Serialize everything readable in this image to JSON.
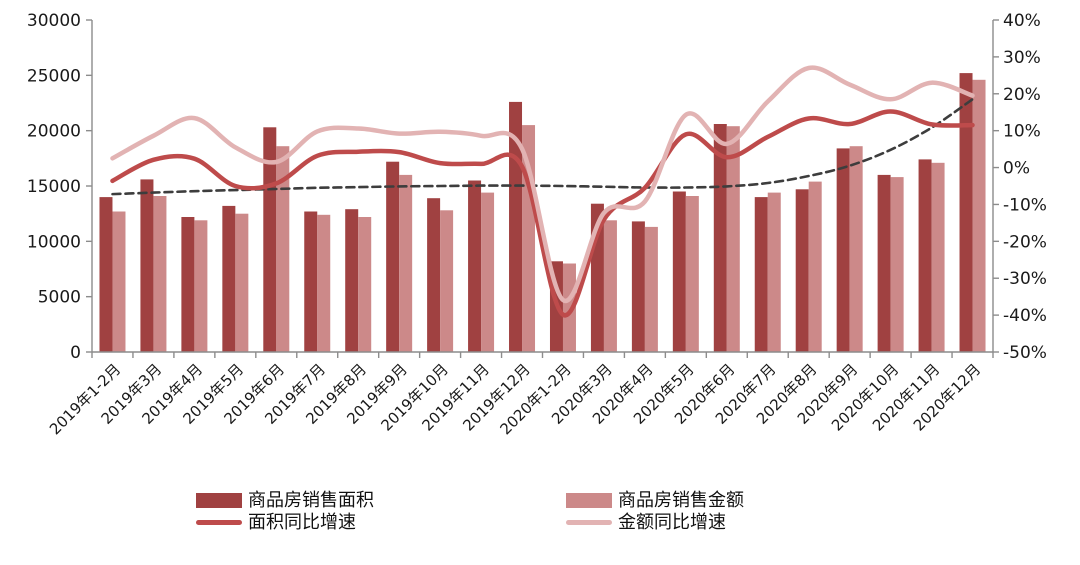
{
  "chart_data": {
    "type": "combo-bar-line",
    "categories": [
      "2019年1-2月",
      "2019年3月",
      "2019年4月",
      "2019年5月",
      "2019年6月",
      "2019年7月",
      "2019年8月",
      "2019年9月",
      "2019年10月",
      "2019年11月",
      "2019年12月",
      "2020年1-2月",
      "2020年3月",
      "2020年4月",
      "2020年5月",
      "2020年6月",
      "2020年7月",
      "2020年8月",
      "2020年9月",
      "2020年10月",
      "2020年11月",
      "2020年12月"
    ],
    "series": [
      {
        "name": "商品房销售面积",
        "type": "bar",
        "axis": "left",
        "color": "#A04141",
        "values": [
          14000,
          15600,
          12200,
          13200,
          20300,
          12700,
          12900,
          17200,
          13900,
          15500,
          22600,
          8200,
          13400,
          11800,
          14500,
          20600,
          14000,
          14700,
          18400,
          16000,
          17400,
          25200
        ]
      },
      {
        "name": "商品房销售金额",
        "type": "bar",
        "axis": "left",
        "color": "#CC8989",
        "values": [
          12700,
          14100,
          11900,
          12500,
          18600,
          12400,
          12200,
          16000,
          12800,
          14400,
          20500,
          8000,
          11900,
          11300,
          14100,
          20400,
          14400,
          15400,
          18600,
          15800,
          17100,
          24600
        ]
      },
      {
        "name": "面积同比增速",
        "type": "line",
        "axis": "right",
        "color": "#BE4B4B",
        "values": [
          -3.6,
          2.1,
          2.4,
          -5.0,
          -4.3,
          3.2,
          4.3,
          4.2,
          1.2,
          1.0,
          0.3,
          -39.9,
          -14.1,
          -5.5,
          9.0,
          2.8,
          8.3,
          13.3,
          11.8,
          15.2,
          11.7,
          11.5
        ]
      },
      {
        "name": "金额同比增速",
        "type": "line",
        "axis": "right",
        "color": "#E2B3B3",
        "values": [
          2.5,
          8.6,
          13.4,
          5.5,
          1.5,
          9.8,
          10.6,
          9.2,
          9.7,
          8.6,
          5.1,
          -35.9,
          -12.3,
          -9.2,
          14.3,
          6.4,
          17.9,
          27.0,
          22.5,
          18.5,
          23.0,
          19.5
        ]
      }
    ],
    "trend_line": {
      "style": "dashed",
      "color": "#3d3d3d",
      "axis": "right",
      "values": [
        -7.2,
        -6.8,
        -6.4,
        -6.1,
        -5.8,
        -5.5,
        -5.3,
        -5.1,
        -5.0,
        -4.9,
        -4.9,
        -5.0,
        -5.2,
        -5.4,
        -5.4,
        -5.1,
        -4.2,
        -2.3,
        0.5,
        4.8,
        10.8,
        18.5
      ]
    },
    "left_axis": {
      "min": 0,
      "max": 30000,
      "step": 5000,
      "tick_labels": [
        "0",
        "5000",
        "10000",
        "15000",
        "20000",
        "25000",
        "30000"
      ]
    },
    "right_axis": {
      "min": -50,
      "max": 40,
      "step": 10,
      "tick_labels": [
        "-50%",
        "-40%",
        "-30%",
        "-20%",
        "-10%",
        "0%",
        "10%",
        "20%",
        "30%",
        "40%"
      ]
    },
    "grid": false,
    "legend_position": "bottom",
    "axis_color": "#8c8c8c",
    "background": "#ffffff"
  }
}
